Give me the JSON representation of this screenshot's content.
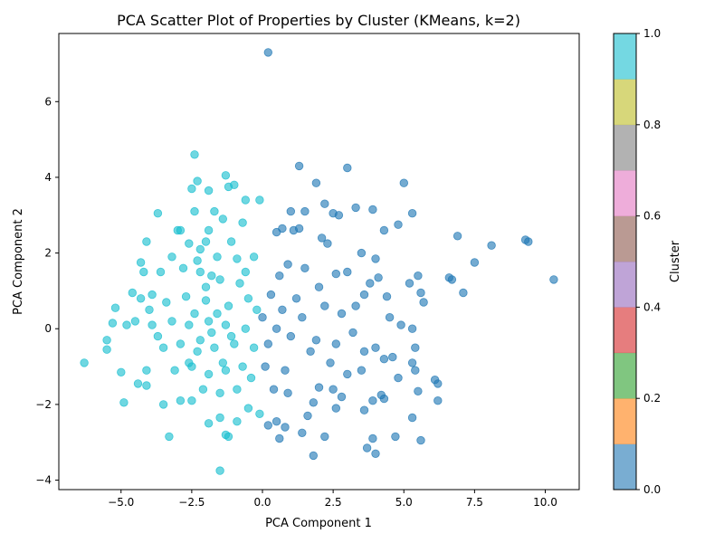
{
  "chart_data": {
    "type": "scatter",
    "title": "PCA Scatter Plot of Properties by Cluster (KMeans, k=2)",
    "xlabel": "PCA Component 1",
    "ylabel": "PCA Component 2",
    "xlim": [
      -7.2,
      11.2
    ],
    "ylim": [
      -4.25,
      7.8
    ],
    "xticks": [
      -5.0,
      -2.5,
      0.0,
      2.5,
      5.0,
      7.5,
      10.0
    ],
    "xtick_labels": [
      "−5.0",
      "−2.5",
      "0.0",
      "2.5",
      "5.0",
      "7.5",
      "10.0"
    ],
    "yticks": [
      -4,
      -2,
      0,
      2,
      4,
      6
    ],
    "ytick_labels": [
      "−4",
      "−2",
      "0",
      "2",
      "4",
      "6"
    ],
    "grid": false,
    "legend": "none",
    "colorbar": {
      "label": "Cluster",
      "range": [
        0.0,
        1.0
      ],
      "ticks": [
        0.0,
        0.2,
        0.4,
        0.6,
        0.8,
        1.0
      ],
      "tick_labels": [
        "0.0",
        "0.2",
        "0.4",
        "0.6",
        "0.8",
        "1.0"
      ],
      "colormap": "tab10",
      "segment_colors": [
        "#1f77b4",
        "#ff7f0e",
        "#2ca02c",
        "#d62728",
        "#9467bd",
        "#8c564b",
        "#e377c2",
        "#7f7f7f",
        "#bcbd22",
        "#17becf"
      ]
    },
    "series": [
      {
        "cluster": 0,
        "color": "#1f77b4",
        "points": [
          [
            0.2,
            7.3
          ],
          [
            1.3,
            4.3
          ],
          [
            3.0,
            4.25
          ],
          [
            5.0,
            3.85
          ],
          [
            1.9,
            3.85
          ],
          [
            2.2,
            3.3
          ],
          [
            3.3,
            3.2
          ],
          [
            3.9,
            3.15
          ],
          [
            1.5,
            3.1
          ],
          [
            2.5,
            3.05
          ],
          [
            2.7,
            3.0
          ],
          [
            5.3,
            3.05
          ],
          [
            1.0,
            3.1
          ],
          [
            4.8,
            2.75
          ],
          [
            4.3,
            2.6
          ],
          [
            6.9,
            2.45
          ],
          [
            8.1,
            2.2
          ],
          [
            9.3,
            2.35
          ],
          [
            9.4,
            2.3
          ],
          [
            7.5,
            1.75
          ],
          [
            6.6,
            1.35
          ],
          [
            6.7,
            1.3
          ],
          [
            7.1,
            0.95
          ],
          [
            10.3,
            1.3
          ],
          [
            5.5,
            1.4
          ],
          [
            5.2,
            1.2
          ],
          [
            5.6,
            0.95
          ],
          [
            5.7,
            0.7
          ],
          [
            4.9,
            0.1
          ],
          [
            5.3,
            0.0
          ],
          [
            5.4,
            -0.5
          ],
          [
            5.3,
            -0.9
          ],
          [
            5.4,
            -1.1
          ],
          [
            4.8,
            -1.3
          ],
          [
            6.1,
            -1.35
          ],
          [
            6.2,
            -1.45
          ],
          [
            6.2,
            -1.9
          ],
          [
            5.5,
            -1.65
          ],
          [
            5.3,
            -2.35
          ],
          [
            4.7,
            -2.85
          ],
          [
            5.6,
            -2.95
          ],
          [
            3.9,
            -2.9
          ],
          [
            3.7,
            -3.15
          ],
          [
            4.0,
            -3.3
          ],
          [
            2.2,
            -2.85
          ],
          [
            1.8,
            -3.35
          ],
          [
            0.6,
            -2.9
          ],
          [
            1.4,
            -2.75
          ],
          [
            0.8,
            -2.6
          ],
          [
            0.5,
            -2.45
          ],
          [
            0.2,
            -2.55
          ],
          [
            1.6,
            -2.3
          ],
          [
            2.6,
            -2.1
          ],
          [
            3.6,
            -2.15
          ],
          [
            3.9,
            -1.9
          ],
          [
            4.3,
            -1.85
          ],
          [
            4.2,
            -1.75
          ],
          [
            2.1,
            2.4
          ],
          [
            2.3,
            2.25
          ],
          [
            1.3,
            2.65
          ],
          [
            1.1,
            2.6
          ],
          [
            0.5,
            2.55
          ],
          [
            0.7,
            2.65
          ],
          [
            3.5,
            2.0
          ],
          [
            4.0,
            1.85
          ],
          [
            3.0,
            1.5
          ],
          [
            2.6,
            1.45
          ],
          [
            3.8,
            1.2
          ],
          [
            4.1,
            1.35
          ],
          [
            4.4,
            0.85
          ],
          [
            3.6,
            0.9
          ],
          [
            4.5,
            0.3
          ],
          [
            3.2,
            -0.1
          ],
          [
            3.6,
            -0.6
          ],
          [
            4.0,
            -0.5
          ],
          [
            4.3,
            -0.8
          ],
          [
            4.6,
            -0.75
          ],
          [
            3.0,
            -1.2
          ],
          [
            3.5,
            -1.1
          ],
          [
            2.5,
            -1.6
          ],
          [
            2.0,
            -1.55
          ],
          [
            2.8,
            -1.8
          ],
          [
            1.8,
            -1.95
          ],
          [
            0.9,
            -1.7
          ],
          [
            0.4,
            -1.6
          ],
          [
            0.1,
            -1.0
          ],
          [
            0.2,
            -0.4
          ],
          [
            0.0,
            0.3
          ],
          [
            0.3,
            0.9
          ],
          [
            0.6,
            1.4
          ],
          [
            0.9,
            1.7
          ],
          [
            1.5,
            1.6
          ],
          [
            2.0,
            1.1
          ],
          [
            2.2,
            0.6
          ],
          [
            1.4,
            0.3
          ],
          [
            1.0,
            -0.2
          ],
          [
            1.7,
            -0.6
          ],
          [
            2.4,
            -0.9
          ],
          [
            0.8,
            -1.1
          ],
          [
            0.5,
            0.0
          ],
          [
            1.2,
            0.8
          ],
          [
            2.8,
            0.4
          ],
          [
            3.3,
            0.6
          ],
          [
            1.9,
            -0.3
          ],
          [
            0.7,
            0.5
          ],
          [
            2.6,
            -0.4
          ]
        ]
      },
      {
        "cluster": 1,
        "color": "#17becf",
        "points": [
          [
            -2.4,
            4.6
          ],
          [
            -1.3,
            4.05
          ],
          [
            -2.3,
            3.9
          ],
          [
            -1.0,
            3.8
          ],
          [
            -1.2,
            3.75
          ],
          [
            -2.5,
            3.7
          ],
          [
            -1.9,
            3.65
          ],
          [
            -0.6,
            3.4
          ],
          [
            -0.1,
            3.4
          ],
          [
            -3.7,
            3.05
          ],
          [
            -2.4,
            3.1
          ],
          [
            -1.7,
            3.1
          ],
          [
            -1.4,
            2.9
          ],
          [
            -0.7,
            2.8
          ],
          [
            -4.1,
            2.3
          ],
          [
            -2.9,
            2.6
          ],
          [
            -2.6,
            2.25
          ],
          [
            -2.0,
            2.3
          ],
          [
            -1.1,
            2.3
          ],
          [
            -3.2,
            1.9
          ],
          [
            -3.6,
            1.5
          ],
          [
            -4.3,
            1.75
          ],
          [
            -4.2,
            1.5
          ],
          [
            -4.6,
            0.95
          ],
          [
            -4.3,
            0.8
          ],
          [
            -5.2,
            0.55
          ],
          [
            -5.3,
            0.15
          ],
          [
            -4.8,
            0.1
          ],
          [
            -5.5,
            -0.3
          ],
          [
            -5.5,
            -0.55
          ],
          [
            -6.3,
            -0.9
          ],
          [
            -5.0,
            -1.15
          ],
          [
            -4.1,
            -1.1
          ],
          [
            -4.4,
            -1.45
          ],
          [
            -4.1,
            -1.5
          ],
          [
            -3.5,
            -2.0
          ],
          [
            -4.9,
            -1.95
          ],
          [
            -2.9,
            -1.9
          ],
          [
            -2.5,
            -1.9
          ],
          [
            -1.9,
            -2.5
          ],
          [
            -1.5,
            -2.35
          ],
          [
            -0.9,
            -2.45
          ],
          [
            -3.3,
            -2.85
          ],
          [
            -1.3,
            -2.8
          ],
          [
            -1.2,
            -2.85
          ],
          [
            -1.5,
            -3.75
          ],
          [
            -0.5,
            -2.1
          ],
          [
            -0.1,
            -2.25
          ],
          [
            -3.0,
            2.6
          ],
          [
            -2.2,
            2.1
          ],
          [
            -1.6,
            1.9
          ],
          [
            -0.9,
            1.85
          ],
          [
            -0.3,
            1.9
          ],
          [
            -2.8,
            1.6
          ],
          [
            -2.2,
            1.5
          ],
          [
            -1.5,
            1.3
          ],
          [
            -0.8,
            1.2
          ],
          [
            -3.9,
            0.9
          ],
          [
            -3.4,
            0.7
          ],
          [
            -2.7,
            0.85
          ],
          [
            -2.0,
            0.75
          ],
          [
            -1.2,
            0.6
          ],
          [
            -0.5,
            0.8
          ],
          [
            -4.5,
            0.2
          ],
          [
            -3.9,
            0.1
          ],
          [
            -3.2,
            0.2
          ],
          [
            -2.6,
            0.1
          ],
          [
            -1.9,
            0.2
          ],
          [
            -1.3,
            0.1
          ],
          [
            -0.6,
            0.0
          ],
          [
            -3.5,
            -0.5
          ],
          [
            -2.9,
            -0.4
          ],
          [
            -2.3,
            -0.6
          ],
          [
            -1.7,
            -0.5
          ],
          [
            -1.0,
            -0.4
          ],
          [
            -0.3,
            -0.5
          ],
          [
            -3.1,
            -1.1
          ],
          [
            -2.5,
            -1.0
          ],
          [
            -1.9,
            -1.2
          ],
          [
            -1.3,
            -1.1
          ],
          [
            -0.7,
            -1.0
          ],
          [
            -2.1,
            -1.6
          ],
          [
            -1.5,
            -1.7
          ],
          [
            -0.9,
            -1.6
          ],
          [
            -2.4,
            0.4
          ],
          [
            -1.8,
            -0.1
          ],
          [
            -2.2,
            -0.3
          ],
          [
            -1.6,
            0.4
          ],
          [
            -1.1,
            -0.2
          ],
          [
            -2.0,
            1.1
          ],
          [
            -2.6,
            -0.9
          ],
          [
            -1.4,
            -0.9
          ],
          [
            -0.4,
            -1.3
          ],
          [
            -0.2,
            0.5
          ],
          [
            -3.7,
            -0.2
          ],
          [
            -4.0,
            0.5
          ],
          [
            -2.3,
            1.8
          ],
          [
            -1.8,
            1.4
          ],
          [
            -0.6,
            1.5
          ],
          [
            -1.9,
            2.6
          ]
        ]
      }
    ]
  }
}
